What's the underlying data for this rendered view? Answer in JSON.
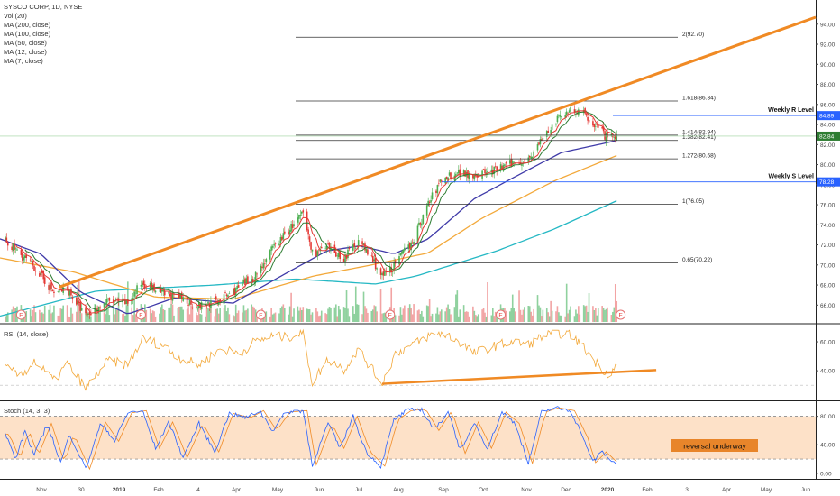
{
  "legend": {
    "title": "SYSCO CORP, 1D, NYSE",
    "indicators": [
      "Vol (20)",
      "MA (200, close)",
      "MA (100, close)",
      "MA (50, close)",
      "MA (12, close)",
      "MA (7, close)"
    ]
  },
  "rsi_label": "RSI (14, close)",
  "stoch_label": "Stoch (14, 3, 3)",
  "colors": {
    "up": "#4caf50",
    "down": "#e53935",
    "trend": "#f08a24",
    "ma7": "#e53935",
    "ma12": "#2e7d32",
    "ma50": "#3f3aa8",
    "ma100": "#f3a93b",
    "ma200": "#25b8c4",
    "level_line": "#333333",
    "resistance": "#2962ff",
    "rsi": "#f3a93b",
    "stoch_k": "#2962ff",
    "stoch_d": "#f08a24",
    "stoch_band": "#fde1c8",
    "badge_blue": "#2962ff",
    "badge_green": "#2e7d32"
  },
  "chart_data": {
    "type": "candlestick",
    "series_name": "SYSCO CORP",
    "ylim": [
      64.5,
      94.7
    ],
    "price_ticks": [
      66,
      68,
      70,
      72,
      74,
      76,
      78,
      80,
      82,
      84,
      86,
      88,
      90,
      92,
      94
    ],
    "x_labels": [
      "Nov",
      "30",
      "2019",
      "Feb",
      "4",
      "Apr",
      "May",
      "Jun",
      "Jul",
      "Aug",
      "Sep",
      "Oct",
      "Nov",
      "Dec",
      "2020",
      "Feb",
      "3",
      "Apr",
      "May",
      "Jun"
    ],
    "price_path": [
      {
        "date": "2018-10-24",
        "price": 72.4
      },
      {
        "date": "2018-11-05",
        "price": 71.0
      },
      {
        "date": "2018-11-15",
        "price": 69.8
      },
      {
        "date": "2018-11-30",
        "price": 67.2
      },
      {
        "date": "2018-12-10",
        "price": 67.6
      },
      {
        "date": "2018-12-24",
        "price": 64.9
      },
      {
        "date": "2019-01-10",
        "price": 66.4
      },
      {
        "date": "2019-01-25",
        "price": 66.2
      },
      {
        "date": "2019-02-05",
        "price": 68.3
      },
      {
        "date": "2019-02-20",
        "price": 67.1
      },
      {
        "date": "2019-03-05",
        "price": 66.8
      },
      {
        "date": "2019-03-20",
        "price": 65.9
      },
      {
        "date": "2019-04-05",
        "price": 66.5
      },
      {
        "date": "2019-04-20",
        "price": 67.8
      },
      {
        "date": "2019-05-01",
        "price": 68.8
      },
      {
        "date": "2019-05-15",
        "price": 71.6
      },
      {
        "date": "2019-05-25",
        "price": 73.2
      },
      {
        "date": "2019-06-07",
        "price": 75.1
      },
      {
        "date": "2019-06-14",
        "price": 71.2
      },
      {
        "date": "2019-06-26",
        "price": 71.6
      },
      {
        "date": "2019-07-08",
        "price": 70.7
      },
      {
        "date": "2019-07-19",
        "price": 72.4
      },
      {
        "date": "2019-07-30",
        "price": 70.5
      },
      {
        "date": "2019-08-06",
        "price": 68.8
      },
      {
        "date": "2019-08-16",
        "price": 70.1
      },
      {
        "date": "2019-08-30",
        "price": 72.6
      },
      {
        "date": "2019-09-10",
        "price": 76.1
      },
      {
        "date": "2019-09-20",
        "price": 78.5
      },
      {
        "date": "2019-10-01",
        "price": 79.3
      },
      {
        "date": "2019-10-15",
        "price": 79.0
      },
      {
        "date": "2019-10-30",
        "price": 79.4
      },
      {
        "date": "2019-11-12",
        "price": 80.1
      },
      {
        "date": "2019-11-25",
        "price": 80.6
      },
      {
        "date": "2019-12-06",
        "price": 82.6
      },
      {
        "date": "2019-12-18",
        "price": 84.6
      },
      {
        "date": "2019-12-27",
        "price": 85.6
      },
      {
        "date": "2020-01-06",
        "price": 85.0
      },
      {
        "date": "2020-01-15",
        "price": 83.9
      },
      {
        "date": "2020-01-24",
        "price": 82.6
      },
      {
        "date": "2020-01-31",
        "price": 82.84
      }
    ],
    "last_date": "2020-01-31",
    "last_price": 82.84,
    "last_price_label": "82.84",
    "ma_paths": {
      "ma200": [
        {
          "date": "2018-10-20",
          "price": 64.9
        },
        {
          "date": "2019-01-01",
          "price": 67.4
        },
        {
          "date": "2019-04-01",
          "price": 68.0
        },
        {
          "date": "2019-06-01",
          "price": 68.6
        },
        {
          "date": "2019-08-01",
          "price": 68.1
        },
        {
          "date": "2019-09-01",
          "price": 68.9
        },
        {
          "date": "2019-11-01",
          "price": 71.4
        },
        {
          "date": "2019-12-15",
          "price": 73.6
        },
        {
          "date": "2020-01-31",
          "price": 76.4
        }
      ],
      "ma100": [
        {
          "date": "2018-10-20",
          "price": 70.7
        },
        {
          "date": "2018-12-15",
          "price": 69.3
        },
        {
          "date": "2019-02-15",
          "price": 66.8
        },
        {
          "date": "2019-04-15",
          "price": 66.6
        },
        {
          "date": "2019-06-15",
          "price": 68.9
        },
        {
          "date": "2019-07-25",
          "price": 69.9
        },
        {
          "date": "2019-09-10",
          "price": 71.2
        },
        {
          "date": "2019-10-20",
          "price": 74.6
        },
        {
          "date": "2019-12-15",
          "price": 78.4
        },
        {
          "date": "2020-01-31",
          "price": 80.9
        }
      ],
      "ma50": [
        {
          "date": "2018-10-20",
          "price": 72.6
        },
        {
          "date": "2018-11-20",
          "price": 71.1
        },
        {
          "date": "2018-12-20",
          "price": 67.3
        },
        {
          "date": "2019-01-25",
          "price": 65.1
        },
        {
          "date": "2019-03-01",
          "price": 66.7
        },
        {
          "date": "2019-04-15",
          "price": 66.2
        },
        {
          "date": "2019-05-20",
          "price": 68.8
        },
        {
          "date": "2019-06-25",
          "price": 71.4
        },
        {
          "date": "2019-07-20",
          "price": 71.9
        },
        {
          "date": "2019-08-15",
          "price": 71.1
        },
        {
          "date": "2019-09-10",
          "price": 72.6
        },
        {
          "date": "2019-10-15",
          "price": 76.6
        },
        {
          "date": "2019-11-15",
          "price": 78.8
        },
        {
          "date": "2019-12-20",
          "price": 81.2
        },
        {
          "date": "2020-01-31",
          "price": 82.4
        }
      ]
    },
    "fib_levels": [
      {
        "price": 92.7,
        "label": "2(92.70)"
      },
      {
        "price": 86.34,
        "label": "1.618(86.34)"
      },
      {
        "price": 82.94,
        "label": "1.414(82.94)"
      },
      {
        "price": 82.41,
        "label": "1.382(82.41)"
      },
      {
        "price": 80.58,
        "label": "1.272(80.58)"
      },
      {
        "price": 76.05,
        "label": "1(76.05)"
      },
      {
        "price": 70.22,
        "label": "0.65(70.22)"
      }
    ],
    "weekly_levels": [
      {
        "price": 84.89,
        "text": "Weekly R Level",
        "badge": "84.89"
      },
      {
        "price": 78.28,
        "text": "Weekly S Level",
        "badge": "78.28"
      }
    ],
    "trendline": {
      "from": {
        "date": "2018-12-04",
        "price": 67.8
      },
      "to": {
        "date": "2020-06-30",
        "price": 94.7
      }
    },
    "earnings_marker": "E",
    "earnings_dates": [
      "2018-11-05",
      "2019-02-04",
      "2019-05-06",
      "2019-08-12",
      "2019-11-04",
      "2020-02-03"
    ],
    "rsi": {
      "ylim": [
        22,
        70
      ],
      "ticks": [
        40,
        60
      ],
      "tick_labels": [
        "40.00",
        "60.00"
      ],
      "dashed_level": 30,
      "path": [
        {
          "date": "2018-10-24",
          "value": 42
        },
        {
          "date": "2018-11-05",
          "value": 36
        },
        {
          "date": "2018-11-15",
          "value": 47
        },
        {
          "date": "2018-11-30",
          "value": 33
        },
        {
          "date": "2018-12-10",
          "value": 45
        },
        {
          "date": "2018-12-24",
          "value": 28
        },
        {
          "date": "2019-01-10",
          "value": 47
        },
        {
          "date": "2019-01-25",
          "value": 44
        },
        {
          "date": "2019-02-05",
          "value": 62
        },
        {
          "date": "2019-02-20",
          "value": 58
        },
        {
          "date": "2019-03-05",
          "value": 49
        },
        {
          "date": "2019-03-20",
          "value": 44
        },
        {
          "date": "2019-04-05",
          "value": 55
        },
        {
          "date": "2019-04-20",
          "value": 52
        },
        {
          "date": "2019-05-01",
          "value": 60
        },
        {
          "date": "2019-05-15",
          "value": 64
        },
        {
          "date": "2019-05-25",
          "value": 63
        },
        {
          "date": "2019-06-07",
          "value": 66
        },
        {
          "date": "2019-06-14",
          "value": 32
        },
        {
          "date": "2019-06-26",
          "value": 48
        },
        {
          "date": "2019-07-08",
          "value": 41
        },
        {
          "date": "2019-07-19",
          "value": 55
        },
        {
          "date": "2019-07-30",
          "value": 40
        },
        {
          "date": "2019-08-06",
          "value": 31
        },
        {
          "date": "2019-08-16",
          "value": 52
        },
        {
          "date": "2019-08-30",
          "value": 58
        },
        {
          "date": "2019-09-10",
          "value": 64
        },
        {
          "date": "2019-09-20",
          "value": 66
        },
        {
          "date": "2019-10-01",
          "value": 62
        },
        {
          "date": "2019-10-15",
          "value": 52
        },
        {
          "date": "2019-10-30",
          "value": 57
        },
        {
          "date": "2019-11-12",
          "value": 60
        },
        {
          "date": "2019-11-25",
          "value": 58
        },
        {
          "date": "2019-12-06",
          "value": 64
        },
        {
          "date": "2019-12-18",
          "value": 66
        },
        {
          "date": "2019-12-27",
          "value": 65
        },
        {
          "date": "2020-01-06",
          "value": 56
        },
        {
          "date": "2020-01-15",
          "value": 46
        },
        {
          "date": "2020-01-24",
          "value": 38
        },
        {
          "date": "2020-01-31",
          "value": 43
        }
      ],
      "trendline": {
        "from": {
          "date": "2019-08-06",
          "price": 31.0
        },
        "to": {
          "date": "2020-03-01",
          "price": 40.5
        }
      }
    },
    "stoch": {
      "ylim": [
        -4,
        96
      ],
      "ticks": [
        0,
        40,
        80
      ],
      "tick_labels": [
        "0.00",
        "40.00",
        "80.00"
      ],
      "band": [
        20,
        80
      ],
      "osc": [
        {
          "date": "2018-10-24",
          "value": 55
        },
        {
          "date": "2018-11-01",
          "value": 20
        },
        {
          "date": "2018-11-08",
          "value": 60
        },
        {
          "date": "2018-11-15",
          "value": 25
        },
        {
          "date": "2018-11-25",
          "value": 70
        },
        {
          "date": "2018-12-05",
          "value": 15
        },
        {
          "date": "2018-12-12",
          "value": 55
        },
        {
          "date": "2018-12-24",
          "value": 6
        },
        {
          "date": "2019-01-05",
          "value": 72
        },
        {
          "date": "2019-01-15",
          "value": 45
        },
        {
          "date": "2019-01-25",
          "value": 85
        },
        {
          "date": "2019-02-05",
          "value": 88
        },
        {
          "date": "2019-02-15",
          "value": 35
        },
        {
          "date": "2019-02-25",
          "value": 72
        },
        {
          "date": "2019-03-08",
          "value": 22
        },
        {
          "date": "2019-03-20",
          "value": 70
        },
        {
          "date": "2019-04-01",
          "value": 30
        },
        {
          "date": "2019-04-12",
          "value": 84
        },
        {
          "date": "2019-04-25",
          "value": 78
        },
        {
          "date": "2019-05-05",
          "value": 88
        },
        {
          "date": "2019-05-15",
          "value": 60
        },
        {
          "date": "2019-05-25",
          "value": 86
        },
        {
          "date": "2019-06-07",
          "value": 88
        },
        {
          "date": "2019-06-14",
          "value": 12
        },
        {
          "date": "2019-06-26",
          "value": 70
        },
        {
          "date": "2019-07-05",
          "value": 35
        },
        {
          "date": "2019-07-15",
          "value": 80
        },
        {
          "date": "2019-07-25",
          "value": 30
        },
        {
          "date": "2019-08-05",
          "value": 10
        },
        {
          "date": "2019-08-15",
          "value": 75
        },
        {
          "date": "2019-08-25",
          "value": 88
        },
        {
          "date": "2019-09-05",
          "value": 90
        },
        {
          "date": "2019-09-15",
          "value": 60
        },
        {
          "date": "2019-09-25",
          "value": 88
        },
        {
          "date": "2019-10-05",
          "value": 28
        },
        {
          "date": "2019-10-15",
          "value": 72
        },
        {
          "date": "2019-10-25",
          "value": 35
        },
        {
          "date": "2019-11-05",
          "value": 86
        },
        {
          "date": "2019-11-15",
          "value": 70
        },
        {
          "date": "2019-11-25",
          "value": 14
        },
        {
          "date": "2019-12-05",
          "value": 86
        },
        {
          "date": "2019-12-15",
          "value": 92
        },
        {
          "date": "2019-12-27",
          "value": 88
        },
        {
          "date": "2020-01-06",
          "value": 50
        },
        {
          "date": "2020-01-12",
          "value": 15
        },
        {
          "date": "2020-01-20",
          "value": 30
        },
        {
          "date": "2020-01-27",
          "value": 18
        },
        {
          "date": "2020-01-31",
          "value": 12
        }
      ],
      "label": "reversal underway"
    }
  }
}
